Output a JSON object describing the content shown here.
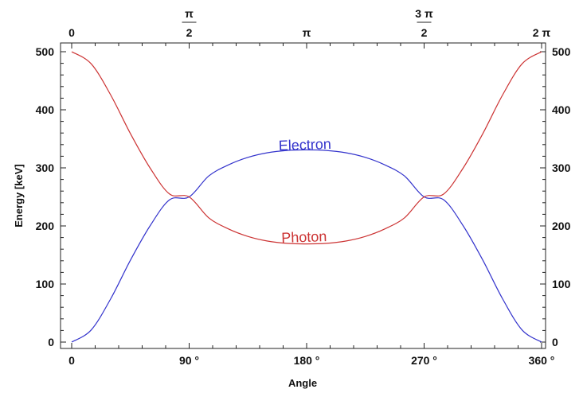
{
  "chart_data": {
    "type": "line",
    "xlabel": "Angle",
    "ylabel": "Energy [keV]",
    "xlim": [
      0,
      360
    ],
    "ylim": [
      0,
      500
    ],
    "x_ticks": [
      {
        "value": 0,
        "label": "0"
      },
      {
        "value": 90,
        "label": "90 °"
      },
      {
        "value": 180,
        "label": "180 °"
      },
      {
        "value": 270,
        "label": "270 °"
      },
      {
        "value": 360,
        "label": "360 °"
      }
    ],
    "x_top_ticks": [
      {
        "value": 0,
        "label": "0"
      },
      {
        "value": 90,
        "label": "π/2",
        "num": "π",
        "den": "2"
      },
      {
        "value": 180,
        "label": "π"
      },
      {
        "value": 270,
        "label": "3π/2",
        "num": "3 π",
        "den": "2"
      },
      {
        "value": 360,
        "label": "2 π"
      }
    ],
    "y_ticks": [
      0,
      100,
      200,
      300,
      400,
      500
    ],
    "grid": false,
    "series": [
      {
        "name": "Electron",
        "color": "#3333cc",
        "x": [
          0,
          15,
          30,
          45,
          60,
          75,
          90,
          105,
          120,
          135,
          150,
          165,
          180,
          195,
          210,
          225,
          240,
          255,
          270,
          285,
          300,
          315,
          330,
          345,
          360
        ],
        "values": [
          0,
          21,
          75,
          141,
          200,
          245,
          250,
          286,
          305,
          318,
          326,
          330,
          331,
          330,
          326,
          318,
          305,
          286,
          250,
          245,
          200,
          141,
          75,
          21,
          0
        ]
      },
      {
        "name": "Photon",
        "color": "#cc3333",
        "x": [
          0,
          15,
          30,
          45,
          60,
          75,
          90,
          105,
          120,
          135,
          150,
          165,
          180,
          195,
          210,
          225,
          240,
          255,
          270,
          285,
          300,
          315,
          330,
          345,
          360
        ],
        "values": [
          500,
          479,
          425,
          359,
          300,
          255,
          250,
          214,
          195,
          182,
          174,
          170,
          169,
          170,
          174,
          182,
          195,
          214,
          250,
          255,
          300,
          359,
          425,
          479,
          500
        ]
      }
    ]
  }
}
